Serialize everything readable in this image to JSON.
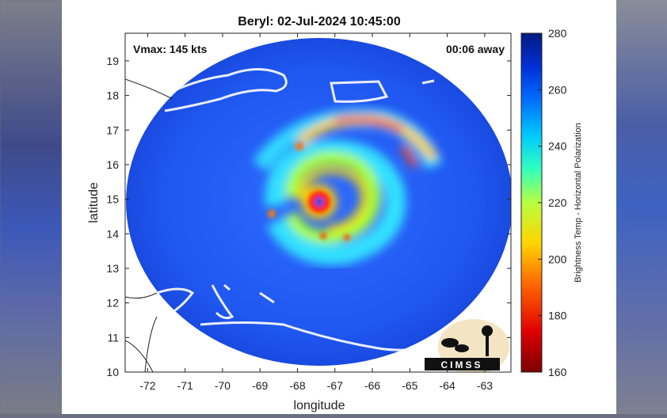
{
  "chart_data": {
    "type": "heatmap",
    "title": "Beryl: 02-Jul-2024 10:45:00",
    "annotations": {
      "vmax": "Vmax: 145 kts",
      "time_away": "00:06 away"
    },
    "xlabel": "longitude",
    "ylabel": "latitude",
    "xlim": [
      -72.6,
      -62.3
    ],
    "ylim": [
      10,
      19.8
    ],
    "x_ticks": [
      -72,
      -71,
      -70,
      -69,
      -68,
      -67,
      -66,
      -65,
      -64,
      -63
    ],
    "y_ticks": [
      10,
      11,
      12,
      13,
      14,
      15,
      16,
      17,
      18,
      19
    ],
    "colorbar": {
      "label": "Brightness Temp - Horizontal Polarization",
      "range": [
        160,
        280
      ],
      "ticks": [
        160,
        180,
        200,
        220,
        240,
        260,
        280
      ]
    },
    "storm_center": {
      "lon": -67.5,
      "lat": 14.95
    },
    "logo_text": "CIMSS"
  }
}
